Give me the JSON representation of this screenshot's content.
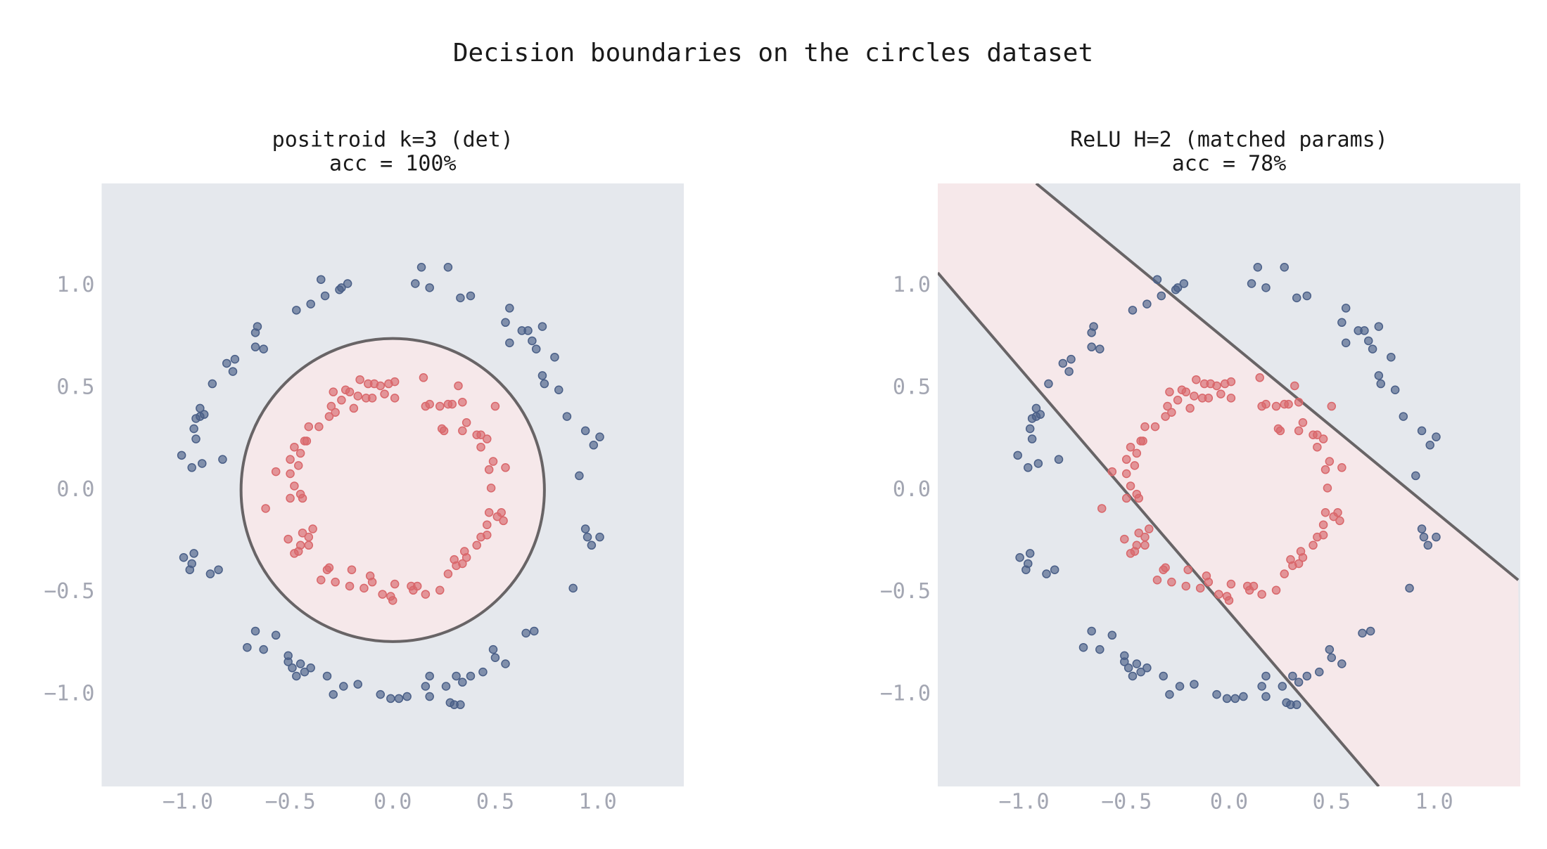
{
  "title": "Decision boundaries on the circles dataset",
  "points": {
    "series": [
      {
        "color": "#4a5f87",
        "x": [
          -0.35,
          -0.22,
          -0.25,
          -0.26,
          -0.33,
          -0.4,
          -0.47,
          0.11,
          0.14,
          0.18,
          0.27,
          0.33,
          0.38,
          0.57,
          0.55,
          0.63,
          0.66,
          0.73,
          0.68,
          0.7,
          0.57,
          0.79,
          0.73,
          0.74,
          0.81,
          0.85,
          0.94,
          1.01,
          0.98,
          0.91,
          0.94,
          0.95,
          1.01,
          0.97,
          0.88,
          0.69,
          0.65,
          0.55,
          0.5,
          0.49,
          0.44,
          0.38,
          0.34,
          0.31,
          0.26,
          0.28,
          0.3,
          0.33,
          0.18,
          0.16,
          0.18,
          0.07,
          0.03,
          -0.01,
          -0.06,
          -0.17,
          -0.24,
          -0.29,
          -0.32,
          -0.45,
          -0.47,
          -0.49,
          -0.4,
          -0.43,
          -0.51,
          -0.51,
          -0.57,
          -0.67,
          -0.63,
          -0.71,
          -1.02,
          -0.98,
          -0.97,
          -0.99,
          -0.89,
          -0.85,
          -1.03,
          -0.98,
          -0.93,
          -0.83,
          -0.96,
          -0.97,
          -0.96,
          -0.94,
          -0.94,
          -0.92,
          -0.88,
          -0.81,
          -0.77,
          -0.78,
          -0.67,
          -0.66,
          -0.63,
          -0.67
        ],
        "values": [
          1.03,
          1.01,
          0.99,
          0.98,
          0.95,
          0.91,
          0.88,
          1.01,
          1.09,
          0.99,
          1.09,
          0.94,
          0.95,
          0.89,
          0.82,
          0.78,
          0.78,
          0.8,
          0.73,
          0.69,
          0.72,
          0.65,
          0.56,
          0.52,
          0.49,
          0.36,
          0.29,
          0.26,
          0.22,
          0.07,
          -0.19,
          -0.23,
          -0.23,
          -0.27,
          -0.48,
          -0.69,
          -0.7,
          -0.85,
          -0.82,
          -0.78,
          -0.89,
          -0.91,
          -0.94,
          -0.91,
          -0.96,
          -1.04,
          -1.05,
          -1.05,
          -0.91,
          -0.96,
          -1.01,
          -1.01,
          -1.02,
          -1.02,
          -1.0,
          -0.95,
          -0.96,
          -1.0,
          -0.91,
          -0.85,
          -0.91,
          -0.87,
          -0.87,
          -0.89,
          -0.81,
          -0.84,
          -0.71,
          -0.69,
          -0.78,
          -0.77,
          -0.33,
          -0.36,
          -0.31,
          -0.39,
          -0.41,
          -0.39,
          0.17,
          0.11,
          0.13,
          0.15,
          0.25,
          0.3,
          0.35,
          0.36,
          0.4,
          0.37,
          0.52,
          0.62,
          0.64,
          0.58,
          0.77,
          0.8,
          0.69,
          0.7
        ]
      },
      {
        "color": "#d9676b",
        "x": [
          -0.16,
          -0.12,
          -0.09,
          -0.06,
          0.01,
          -0.02,
          0.01,
          -0.04,
          -0.1,
          -0.17,
          -0.21,
          -0.23,
          -0.29,
          -0.25,
          -0.3,
          -0.19,
          -0.13,
          0.15,
          0.18,
          0.16,
          0.23,
          0.27,
          0.29,
          0.32,
          0.34,
          0.5,
          0.25,
          0.24,
          0.34,
          0.41,
          0.43,
          0.36,
          0.46,
          0.43,
          0.49,
          0.55,
          0.47,
          0.48,
          0.53,
          0.51,
          0.54,
          0.47,
          0.46,
          0.46,
          0.43,
          0.41,
          0.35,
          0.36,
          0.3,
          0.34,
          0.31,
          0.27,
          0.23,
          0.16,
          0.12,
          0.09,
          0.1,
          0.01,
          -0.01,
          0.0,
          -0.05,
          -0.11,
          -0.14,
          -0.1,
          -0.2,
          -0.21,
          -0.28,
          -0.32,
          -0.31,
          -0.35,
          -0.46,
          -0.48,
          -0.51,
          -0.45,
          -0.41,
          -0.39,
          -0.41,
          -0.44,
          -0.5,
          -0.45,
          -0.48,
          -0.44,
          -0.5,
          -0.46,
          -0.5,
          -0.62,
          -0.57,
          -0.48,
          -0.42,
          -0.41,
          -0.36,
          -0.31,
          -0.28,
          -0.43,
          -0.45
        ],
        "values": [
          0.54,
          0.52,
          0.52,
          0.51,
          0.53,
          0.52,
          0.45,
          0.47,
          0.45,
          0.46,
          0.48,
          0.49,
          0.48,
          0.44,
          0.41,
          0.4,
          0.45,
          0.55,
          0.42,
          0.41,
          0.41,
          0.42,
          0.42,
          0.51,
          0.43,
          0.41,
          0.29,
          0.3,
          0.29,
          0.27,
          0.27,
          0.33,
          0.25,
          0.21,
          0.14,
          0.11,
          0.1,
          0.01,
          -0.11,
          -0.13,
          -0.15,
          -0.11,
          -0.17,
          -0.22,
          -0.23,
          -0.27,
          -0.3,
          -0.33,
          -0.34,
          -0.36,
          -0.37,
          -0.41,
          -0.49,
          -0.51,
          -0.47,
          -0.47,
          -0.49,
          -0.46,
          -0.52,
          -0.54,
          -0.51,
          -0.42,
          -0.48,
          -0.45,
          -0.39,
          -0.47,
          -0.45,
          -0.39,
          -0.38,
          -0.44,
          -0.3,
          -0.31,
          -0.24,
          -0.27,
          -0.27,
          -0.19,
          -0.23,
          -0.21,
          -0.04,
          -0.02,
          0.02,
          -0.04,
          0.08,
          0.12,
          0.15,
          -0.09,
          0.09,
          0.21,
          0.24,
          0.31,
          0.31,
          0.36,
          0.38,
          0.24,
          0.18
        ]
      }
    ]
  },
  "chart_data": [
    {
      "type": "scatter",
      "title": "positroid k=3 (det)",
      "subtitle": "acc = 100%",
      "xlim": [
        -1.42,
        1.42
      ],
      "ylim": [
        -1.45,
        1.5
      ],
      "xticks": [
        {
          "value": -1,
          "label": "−1.0"
        },
        {
          "value": -0.5,
          "label": "−0.5"
        },
        {
          "value": 0,
          "label": "0.0"
        },
        {
          "value": 0.5,
          "label": "0.5"
        },
        {
          "value": 1,
          "label": "1.0"
        }
      ],
      "yticks": [
        {
          "value": -1,
          "label": "−1.0"
        },
        {
          "value": -0.5,
          "label": "−0.5"
        },
        {
          "value": 0,
          "label": "0.0"
        },
        {
          "value": 0.5,
          "label": "0.5"
        },
        {
          "value": 1,
          "label": "1.0"
        }
      ],
      "background_color": "#e5e8ed",
      "region_color": "#f6e8ea",
      "boundary_color": "#686466",
      "boundary": {
        "type": "circle",
        "center": [
          0,
          0
        ],
        "radius": 0.74
      }
    },
    {
      "type": "scatter",
      "title": "ReLU H=2 (matched params)",
      "subtitle": "acc = 78%",
      "xlim": [
        -1.42,
        1.42
      ],
      "ylim": [
        -1.45,
        1.5
      ],
      "xticks": [
        {
          "value": -1,
          "label": "−1.0"
        },
        {
          "value": -0.5,
          "label": "−0.5"
        },
        {
          "value": 0,
          "label": "0.0"
        },
        {
          "value": 0.5,
          "label": "0.5"
        },
        {
          "value": 1,
          "label": "1.0"
        }
      ],
      "yticks": [
        {
          "value": -1,
          "label": "−1.0"
        },
        {
          "value": -0.5,
          "label": "−0.5"
        },
        {
          "value": 0,
          "label": "0.0"
        },
        {
          "value": 0.5,
          "label": "0.5"
        },
        {
          "value": 1,
          "label": "1.0"
        }
      ],
      "background_color": "#e5e8ed",
      "region_color": "#f6e8ea",
      "boundary_color": "#686466",
      "boundary": {
        "type": "band",
        "lines": [
          [
            -0.94,
            1.5,
            1.41,
            -0.44
          ],
          [
            -1.42,
            1.063,
            0.73,
            -1.45
          ]
        ]
      }
    }
  ]
}
